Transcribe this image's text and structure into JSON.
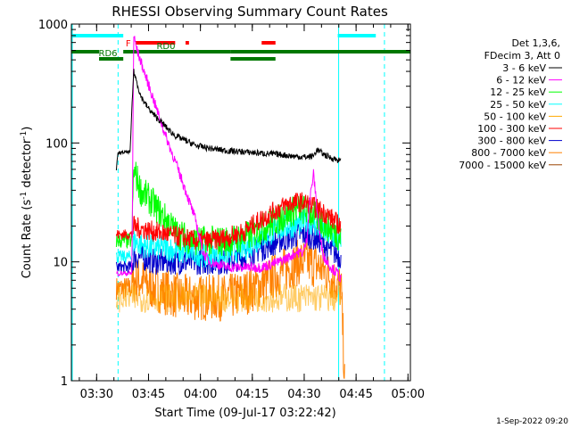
{
  "chart_data": {
    "type": "line",
    "title": "RHESSI Observing Summary Count Rates",
    "xlabel": "Start Time (09-Jul-17 03:22:42)",
    "ylabel": "Count Rate (s",
    "ylabel_sup": "-1",
    "ylabel_mid": " detector",
    "ylabel_sup2": "-1",
    "ylabel_end": ")",
    "yscale": "log",
    "ylim": [
      1,
      1000
    ],
    "xlim_minutes": [
      0,
      98
    ],
    "y_ticks": [
      {
        "value": 1,
        "label": "1"
      },
      {
        "value": 10,
        "label": "10"
      },
      {
        "value": 100,
        "label": "100"
      },
      {
        "value": 1000,
        "label": "1000"
      }
    ],
    "x_ticks": [
      {
        "minute": 7.3,
        "label": "03:30"
      },
      {
        "minute": 22.3,
        "label": "03:45"
      },
      {
        "minute": 37.3,
        "label": "04:00"
      },
      {
        "minute": 52.3,
        "label": "04:15"
      },
      {
        "minute": 67.3,
        "label": "04:30"
      },
      {
        "minute": 82.3,
        "label": "04:45"
      },
      {
        "minute": 97.3,
        "label": "05:00"
      }
    ],
    "legend_header": [
      "Det 1,3,6,",
      "FDecim 3, Att 0"
    ],
    "legend_position": "right",
    "series": [
      {
        "name": "3 - 6 keV",
        "color": "#000000",
        "x": [
          13,
          13.5,
          16,
          17,
          17.5,
          18,
          19,
          20,
          22,
          24,
          26,
          28,
          30,
          33,
          36,
          40,
          45,
          50,
          55,
          60,
          65,
          68,
          70,
          71,
          73,
          75,
          77,
          78
        ],
        "values": [
          60,
          82,
          84,
          84,
          200,
          400,
          320,
          250,
          200,
          170,
          150,
          130,
          115,
          105,
          95,
          90,
          86,
          84,
          82,
          80,
          77,
          76,
          78,
          88,
          80,
          75,
          72,
          70
        ]
      },
      {
        "name": "6 - 12 keV",
        "color": "#ff00ff",
        "x": [
          13,
          16,
          17.5,
          18,
          19,
          21,
          24,
          27,
          30,
          33,
          36,
          38,
          40,
          45,
          50,
          55,
          60,
          63,
          65,
          67,
          68,
          69,
          70,
          71,
          72,
          73,
          75,
          77,
          78
        ],
        "values": [
          8,
          8,
          8,
          800,
          600,
          400,
          220,
          120,
          70,
          40,
          22,
          12,
          10,
          9,
          9,
          9,
          10,
          11,
          12,
          12,
          15,
          35,
          55,
          28,
          15,
          11,
          9,
          8,
          7
        ]
      },
      {
        "name": "12 - 25 keV",
        "color": "#00ff00",
        "x": [
          13,
          16,
          17.5,
          18,
          19,
          20,
          22,
          24,
          26,
          28,
          30,
          33,
          36,
          40,
          45,
          50,
          55,
          60,
          63,
          66,
          68,
          70,
          72,
          74,
          76,
          78
        ],
        "values": [
          15,
          15,
          15,
          60,
          50,
          40,
          35,
          30,
          25,
          22,
          18,
          16,
          15,
          15,
          15,
          16,
          19,
          23,
          26,
          28,
          27,
          25,
          22,
          20,
          18,
          16
        ]
      },
      {
        "name": "25 - 50 keV",
        "color": "#00ffff",
        "x": [
          13,
          16,
          17.5,
          18,
          20,
          24,
          28,
          32,
          36,
          40,
          45,
          50,
          55,
          60,
          63,
          66,
          68,
          70,
          72,
          74,
          76,
          78
        ],
        "values": [
          11,
          11,
          11,
          15,
          14,
          13,
          13,
          12,
          12,
          11,
          12,
          13,
          16,
          19,
          20,
          21,
          22,
          21,
          19,
          17,
          16,
          14
        ]
      },
      {
        "name": "50 - 100 keV",
        "color": "#ffaa00",
        "x": [
          13,
          78
        ],
        "values": [
          5,
          5
        ]
      },
      {
        "name": "100 - 300 keV",
        "color": "#ff0000",
        "x": [
          13,
          16,
          17.5,
          18,
          20,
          24,
          28,
          32,
          36,
          40,
          45,
          50,
          55,
          60,
          63,
          66,
          68,
          70,
          72,
          74,
          76,
          78
        ],
        "values": [
          17,
          17,
          17,
          20,
          19,
          18,
          17,
          16,
          15,
          15,
          16,
          18,
          23,
          28,
          31,
          32,
          31,
          29,
          27,
          25,
          22,
          20
        ]
      },
      {
        "name": "300 - 800 keV",
        "color": "#0000cc",
        "x": [
          13,
          16,
          17.5,
          18,
          20,
          24,
          28,
          32,
          36,
          40,
          45,
          50,
          55,
          60,
          63,
          66,
          68,
          70,
          72,
          74,
          76,
          78
        ],
        "values": [
          9,
          9,
          9,
          11,
          11,
          10,
          10,
          10,
          10,
          10,
          10,
          11,
          13,
          15,
          16,
          17,
          17,
          16,
          15,
          13,
          12,
          11
        ]
      },
      {
        "name": "800 - 7000 keV",
        "color": "#ff8000",
        "x": [
          13,
          16,
          17.5,
          18,
          20,
          24,
          28,
          32,
          36,
          40,
          45,
          50,
          55,
          60,
          63,
          66,
          68,
          70,
          72,
          74,
          76,
          78,
          79
        ],
        "values": [
          6,
          6,
          6,
          7,
          7,
          6,
          5.5,
          5,
          5,
          5,
          5,
          5.5,
          6.5,
          8,
          9,
          10,
          10,
          9.5,
          9,
          8,
          7,
          6,
          1
        ]
      },
      {
        "name": "7000 - 15000 keV",
        "color": "#994400",
        "x": [],
        "values": []
      }
    ],
    "flags": [
      {
        "label": "F",
        "color": "#ff0000",
        "segments": [
          [
            18.5,
            30
          ],
          [
            33,
            34
          ],
          [
            55,
            59
          ]
        ]
      },
      {
        "label": "",
        "color": "#00ffff",
        "segments": [
          [
            0,
            15
          ],
          [
            77,
            88
          ]
        ]
      },
      {
        "label": "RD0",
        "color": "#007700",
        "segments": [
          [
            0,
            8
          ],
          [
            15,
            46
          ],
          [
            46,
            98
          ]
        ]
      },
      {
        "label": "RD6",
        "color": "#007700",
        "segments": [
          [
            8,
            15
          ],
          [
            46,
            59
          ]
        ]
      }
    ],
    "night_lines_solid": [
      0,
      77
    ],
    "night_lines_dashed": [
      13.5,
      90.5
    ]
  },
  "footer_date": "1-Sep-2022 09:20"
}
